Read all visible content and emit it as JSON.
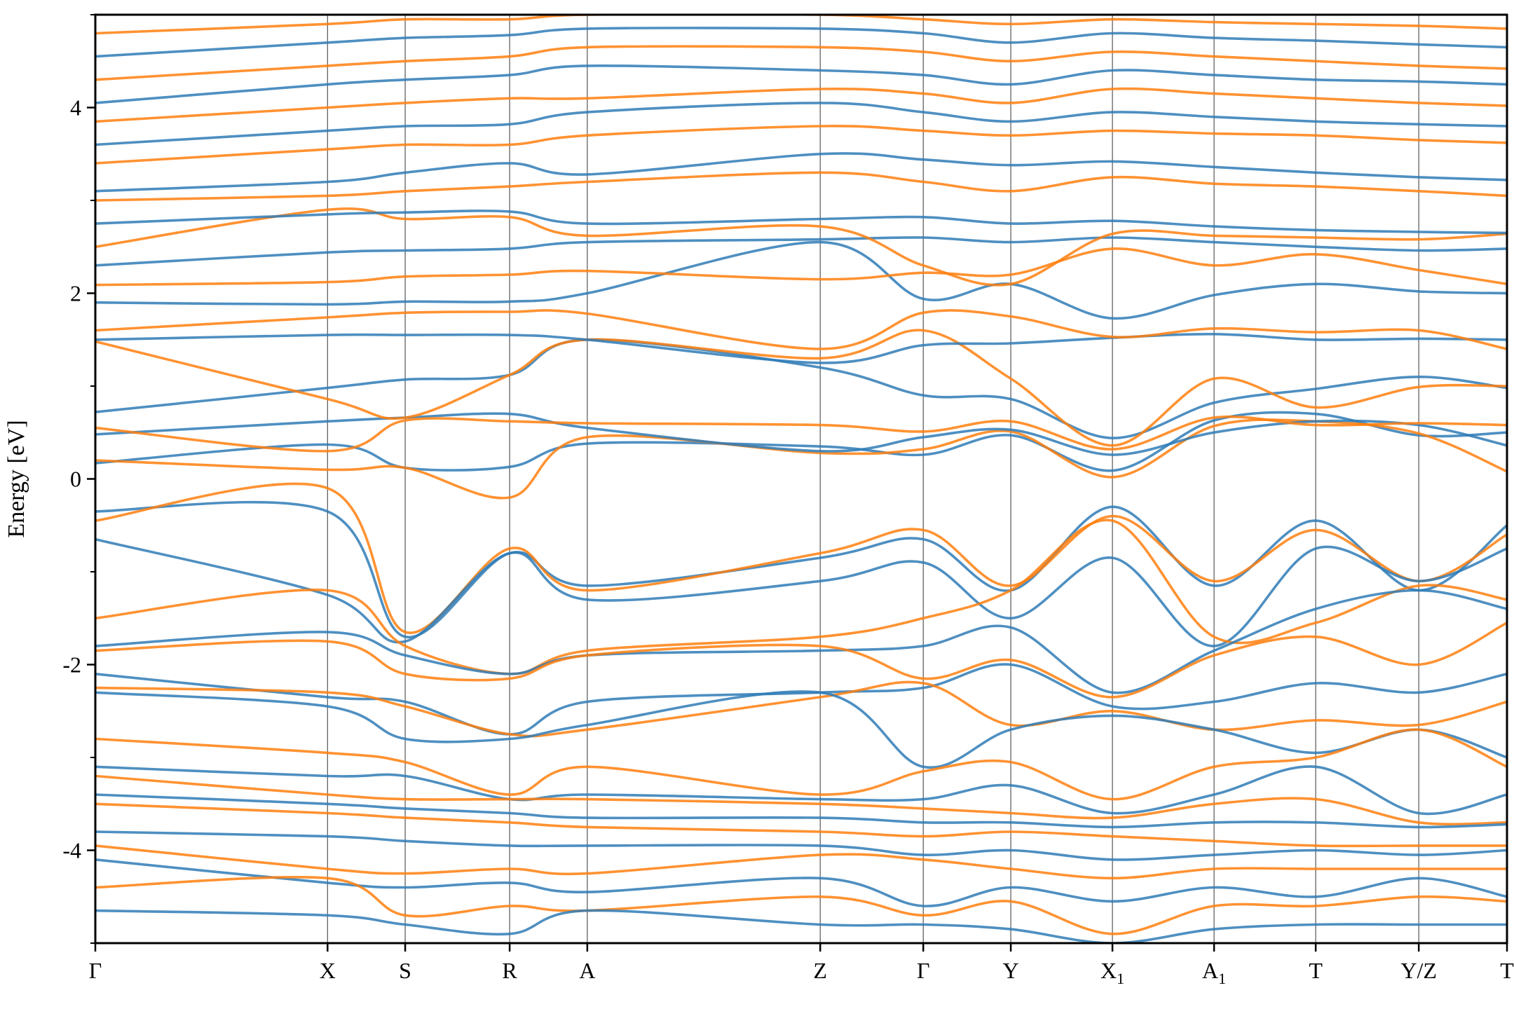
{
  "chart_data": {
    "type": "line",
    "title": "",
    "ylabel": "Energy [eV]",
    "xlabel": "",
    "ylim": [
      -5,
      5
    ],
    "yticks": [
      {
        "value": -4,
        "label": "-4"
      },
      {
        "value": -2,
        "label": "-2"
      },
      {
        "value": 0,
        "label": "0"
      },
      {
        "value": 2,
        "label": "2"
      },
      {
        "value": 4,
        "label": "4"
      }
    ],
    "yminor_ticks": [
      -5,
      -3,
      -1,
      1,
      3,
      5
    ],
    "grid": false,
    "legend": "none",
    "kpoints": [
      {
        "label": "Γ",
        "sub": "",
        "pos": 0.0
      },
      {
        "label": "X",
        "sub": "",
        "pos": 0.1645
      },
      {
        "label": "S",
        "sub": "",
        "pos": 0.2195
      },
      {
        "label": "R",
        "sub": "",
        "pos": 0.2935
      },
      {
        "label": "A",
        "sub": "",
        "pos": 0.3485
      },
      {
        "label": "Z",
        "sub": "",
        "pos": 0.5135
      },
      {
        "label": "Γ",
        "sub": "",
        "pos": 0.5865
      },
      {
        "label": "Y",
        "sub": "",
        "pos": 0.6485
      },
      {
        "label": "X",
        "sub": "1",
        "pos": 0.7205
      },
      {
        "label": "A",
        "sub": "1",
        "pos": 0.7925
      },
      {
        "label": "T",
        "sub": "",
        "pos": 0.8645
      },
      {
        "label": "Y/Z",
        "sub": "",
        "pos": 0.9375
      },
      {
        "label": "T",
        "sub": "",
        "pos": 1.0
      }
    ],
    "series_colors": {
      "blue": "#2f7bb6",
      "orange": "#ff7f0e"
    },
    "series": [
      {
        "color": "blue",
        "y": [
          0.17,
          0.37,
          0.12,
          0.13,
          0.38,
          0.35,
          0.26,
          0.47,
          0.09,
          0.63,
          0.7,
          0.47,
          0.5
        ]
      },
      {
        "color": "orange",
        "y": [
          0.2,
          0.1,
          0.12,
          -0.2,
          0.45,
          0.28,
          0.32,
          0.51,
          0.02,
          0.57,
          0.62,
          0.49,
          0.08
        ]
      },
      {
        "color": "blue",
        "y": [
          0.48,
          0.62,
          0.66,
          0.7,
          0.55,
          0.3,
          0.45,
          0.53,
          0.26,
          0.5,
          0.62,
          0.58,
          0.36
        ]
      },
      {
        "color": "orange",
        "y": [
          0.55,
          0.3,
          0.63,
          0.62,
          0.6,
          0.58,
          0.51,
          0.62,
          0.32,
          0.66,
          0.58,
          0.6,
          0.58
        ]
      },
      {
        "color": "blue",
        "y": [
          0.72,
          0.98,
          1.07,
          1.12,
          1.5,
          1.2,
          0.9,
          0.86,
          0.44,
          0.82,
          0.97,
          1.1,
          0.98
        ]
      },
      {
        "color": "orange",
        "y": [
          1.48,
          0.86,
          0.66,
          1.12,
          1.5,
          1.3,
          1.6,
          1.08,
          0.36,
          1.08,
          0.77,
          0.99,
          1.0
        ]
      },
      {
        "color": "blue",
        "y": [
          1.5,
          1.55,
          1.55,
          1.55,
          1.5,
          1.25,
          1.44,
          1.46,
          1.52,
          1.56,
          1.5,
          1.51,
          1.5
        ]
      },
      {
        "color": "orange",
        "y": [
          1.6,
          1.74,
          1.79,
          1.8,
          1.78,
          1.4,
          1.79,
          1.75,
          1.53,
          1.62,
          1.58,
          1.6,
          1.4
        ]
      },
      {
        "color": "blue",
        "y": [
          1.9,
          1.88,
          1.91,
          1.91,
          2.0,
          2.55,
          1.94,
          2.1,
          1.73,
          1.98,
          2.1,
          2.02,
          2.0
        ]
      },
      {
        "color": "orange",
        "y": [
          2.09,
          2.12,
          2.18,
          2.2,
          2.24,
          2.15,
          2.22,
          2.2,
          2.48,
          2.3,
          2.42,
          2.25,
          2.1
        ]
      },
      {
        "color": "blue",
        "y": [
          2.3,
          2.44,
          2.46,
          2.48,
          2.55,
          2.58,
          2.6,
          2.55,
          2.6,
          2.55,
          2.5,
          2.46,
          2.48
        ]
      },
      {
        "color": "orange",
        "y": [
          2.5,
          2.9,
          2.8,
          2.82,
          2.62,
          2.72,
          2.3,
          2.1,
          2.64,
          2.62,
          2.6,
          2.58,
          2.64
        ]
      },
      {
        "color": "blue",
        "y": [
          2.75,
          2.85,
          2.87,
          2.88,
          2.75,
          2.8,
          2.82,
          2.75,
          2.78,
          2.72,
          2.68,
          2.66,
          2.65
        ]
      },
      {
        "color": "orange",
        "y": [
          3.0,
          3.05,
          3.1,
          3.15,
          3.2,
          3.3,
          3.2,
          3.1,
          3.25,
          3.18,
          3.15,
          3.1,
          3.05
        ]
      },
      {
        "color": "blue",
        "y": [
          3.1,
          3.2,
          3.3,
          3.4,
          3.28,
          3.5,
          3.44,
          3.38,
          3.42,
          3.36,
          3.3,
          3.25,
          3.22
        ]
      },
      {
        "color": "orange",
        "y": [
          3.4,
          3.55,
          3.6,
          3.6,
          3.7,
          3.8,
          3.75,
          3.7,
          3.75,
          3.72,
          3.7,
          3.65,
          3.62
        ]
      },
      {
        "color": "blue",
        "y": [
          3.6,
          3.75,
          3.8,
          3.82,
          3.95,
          4.05,
          3.95,
          3.85,
          3.95,
          3.9,
          3.85,
          3.82,
          3.8
        ]
      },
      {
        "color": "orange",
        "y": [
          3.85,
          4.0,
          4.05,
          4.1,
          4.1,
          4.2,
          4.15,
          4.05,
          4.2,
          4.15,
          4.1,
          4.05,
          4.02
        ]
      },
      {
        "color": "blue",
        "y": [
          4.05,
          4.25,
          4.3,
          4.35,
          4.45,
          4.4,
          4.35,
          4.25,
          4.4,
          4.35,
          4.3,
          4.28,
          4.25
        ]
      },
      {
        "color": "orange",
        "y": [
          4.3,
          4.45,
          4.5,
          4.55,
          4.65,
          4.65,
          4.6,
          4.5,
          4.6,
          4.55,
          4.5,
          4.45,
          4.42
        ]
      },
      {
        "color": "blue",
        "y": [
          4.55,
          4.7,
          4.75,
          4.78,
          4.85,
          4.85,
          4.8,
          4.7,
          4.8,
          4.75,
          4.72,
          4.68,
          4.65
        ]
      },
      {
        "color": "orange",
        "y": [
          4.8,
          4.9,
          4.95,
          4.95,
          5.0,
          5.0,
          4.95,
          4.9,
          4.95,
          4.92,
          4.9,
          4.88,
          4.85
        ]
      },
      {
        "color": "blue",
        "y": [
          -0.35,
          -0.35,
          -1.7,
          -0.8,
          -1.15,
          -0.85,
          -0.65,
          -1.2,
          -0.3,
          -1.15,
          -0.45,
          -1.2,
          -0.5
        ]
      },
      {
        "color": "orange",
        "y": [
          -0.45,
          -0.1,
          -1.65,
          -0.75,
          -1.2,
          -0.8,
          -0.55,
          -1.15,
          -0.4,
          -1.1,
          -0.55,
          -1.1,
          -0.6
        ]
      },
      {
        "color": "blue",
        "y": [
          -0.65,
          -1.25,
          -1.75,
          -0.8,
          -1.3,
          -1.1,
          -0.9,
          -1.5,
          -0.85,
          -1.8,
          -0.75,
          -1.1,
          -0.75
        ]
      },
      {
        "color": "orange",
        "y": [
          -1.5,
          -1.2,
          -1.8,
          -2.1,
          -1.85,
          -1.7,
          -1.5,
          -1.2,
          -0.45,
          -1.7,
          -1.55,
          -1.15,
          -1.3
        ]
      },
      {
        "color": "blue",
        "y": [
          -1.8,
          -1.65,
          -1.9,
          -2.1,
          -1.9,
          -1.85,
          -1.8,
          -1.6,
          -2.3,
          -1.85,
          -1.4,
          -1.2,
          -1.4
        ]
      },
      {
        "color": "orange",
        "y": [
          -1.85,
          -1.75,
          -2.1,
          -2.15,
          -1.9,
          -1.8,
          -2.15,
          -1.95,
          -2.35,
          -1.9,
          -1.7,
          -2.0,
          -1.55
        ]
      },
      {
        "color": "blue",
        "y": [
          -2.1,
          -2.35,
          -2.4,
          -2.75,
          -2.4,
          -2.3,
          -2.25,
          -2.0,
          -2.45,
          -2.4,
          -2.2,
          -2.3,
          -2.1
        ]
      },
      {
        "color": "orange",
        "y": [
          -2.25,
          -2.3,
          -2.45,
          -2.75,
          -2.7,
          -2.35,
          -2.2,
          -2.65,
          -2.5,
          -2.7,
          -2.6,
          -2.65,
          -2.4
        ]
      },
      {
        "color": "blue",
        "y": [
          -2.3,
          -2.45,
          -2.8,
          -2.8,
          -2.65,
          -2.3,
          -3.1,
          -2.7,
          -2.55,
          -2.7,
          -2.95,
          -2.7,
          -3.0
        ]
      },
      {
        "color": "orange",
        "y": [
          -2.8,
          -2.95,
          -3.05,
          -3.4,
          -3.1,
          -3.4,
          -3.15,
          -3.05,
          -3.45,
          -3.1,
          -3.0,
          -2.7,
          -3.1
        ]
      },
      {
        "color": "blue",
        "y": [
          -3.1,
          -3.2,
          -3.2,
          -3.45,
          -3.4,
          -3.45,
          -3.45,
          -3.3,
          -3.6,
          -3.4,
          -3.1,
          -3.6,
          -3.4
        ]
      },
      {
        "color": "orange",
        "y": [
          -3.2,
          -3.4,
          -3.45,
          -3.45,
          -3.45,
          -3.5,
          -3.55,
          -3.6,
          -3.65,
          -3.5,
          -3.45,
          -3.7,
          -3.7
        ]
      },
      {
        "color": "blue",
        "y": [
          -3.4,
          -3.5,
          -3.55,
          -3.6,
          -3.65,
          -3.65,
          -3.7,
          -3.7,
          -3.75,
          -3.7,
          -3.7,
          -3.75,
          -3.72
        ]
      },
      {
        "color": "orange",
        "y": [
          -3.5,
          -3.6,
          -3.65,
          -3.7,
          -3.75,
          -3.8,
          -3.85,
          -3.8,
          -3.85,
          -3.9,
          -3.95,
          -3.95,
          -3.95
        ]
      },
      {
        "color": "blue",
        "y": [
          -3.8,
          -3.85,
          -3.9,
          -3.95,
          -3.95,
          -3.95,
          -4.05,
          -4.0,
          -4.1,
          -4.05,
          -4.0,
          -4.05,
          -4.0
        ]
      },
      {
        "color": "orange",
        "y": [
          -3.95,
          -4.2,
          -4.25,
          -4.2,
          -4.25,
          -4.05,
          -4.1,
          -4.2,
          -4.3,
          -4.2,
          -4.2,
          -4.2,
          -4.2
        ]
      },
      {
        "color": "blue",
        "y": [
          -4.1,
          -4.35,
          -4.4,
          -4.35,
          -4.45,
          -4.3,
          -4.6,
          -4.4,
          -4.55,
          -4.4,
          -4.5,
          -4.3,
          -4.5
        ]
      },
      {
        "color": "orange",
        "y": [
          -4.4,
          -4.3,
          -4.7,
          -4.6,
          -4.65,
          -4.5,
          -4.7,
          -4.55,
          -4.9,
          -4.6,
          -4.6,
          -4.5,
          -4.55
        ]
      },
      {
        "color": "blue",
        "y": [
          -4.65,
          -4.7,
          -4.8,
          -4.9,
          -4.65,
          -4.8,
          -4.8,
          -4.85,
          -5.0,
          -4.85,
          -4.8,
          -4.8,
          -4.8
        ]
      }
    ]
  }
}
